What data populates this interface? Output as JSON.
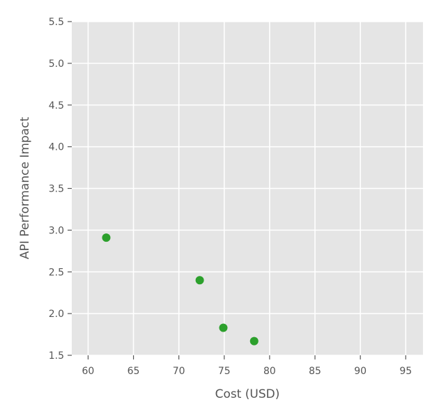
{
  "chart_data": {
    "type": "scatter",
    "title": "",
    "xlabel": "Cost (USD)",
    "ylabel": "API Performance Impact",
    "xlim": [
      58.2,
      96.9
    ],
    "ylim": [
      1.5,
      5.5
    ],
    "xticks": [
      60,
      65,
      70,
      75,
      80,
      85,
      90,
      95
    ],
    "yticks": [
      1.5,
      2.0,
      2.5,
      3.0,
      3.5,
      4.0,
      4.5,
      5.0,
      5.5
    ],
    "grid": true,
    "series": [
      {
        "color": "#2ca02c",
        "points": [
          {
            "x": 62.0,
            "y": 2.91
          },
          {
            "x": 72.3,
            "y": 2.4
          },
          {
            "x": 74.9,
            "y": 1.83
          },
          {
            "x": 78.3,
            "y": 1.67
          }
        ]
      }
    ],
    "colors": {
      "plot_background": "#e5e5e5",
      "grid": "#ffffff",
      "text": "#555555"
    }
  }
}
